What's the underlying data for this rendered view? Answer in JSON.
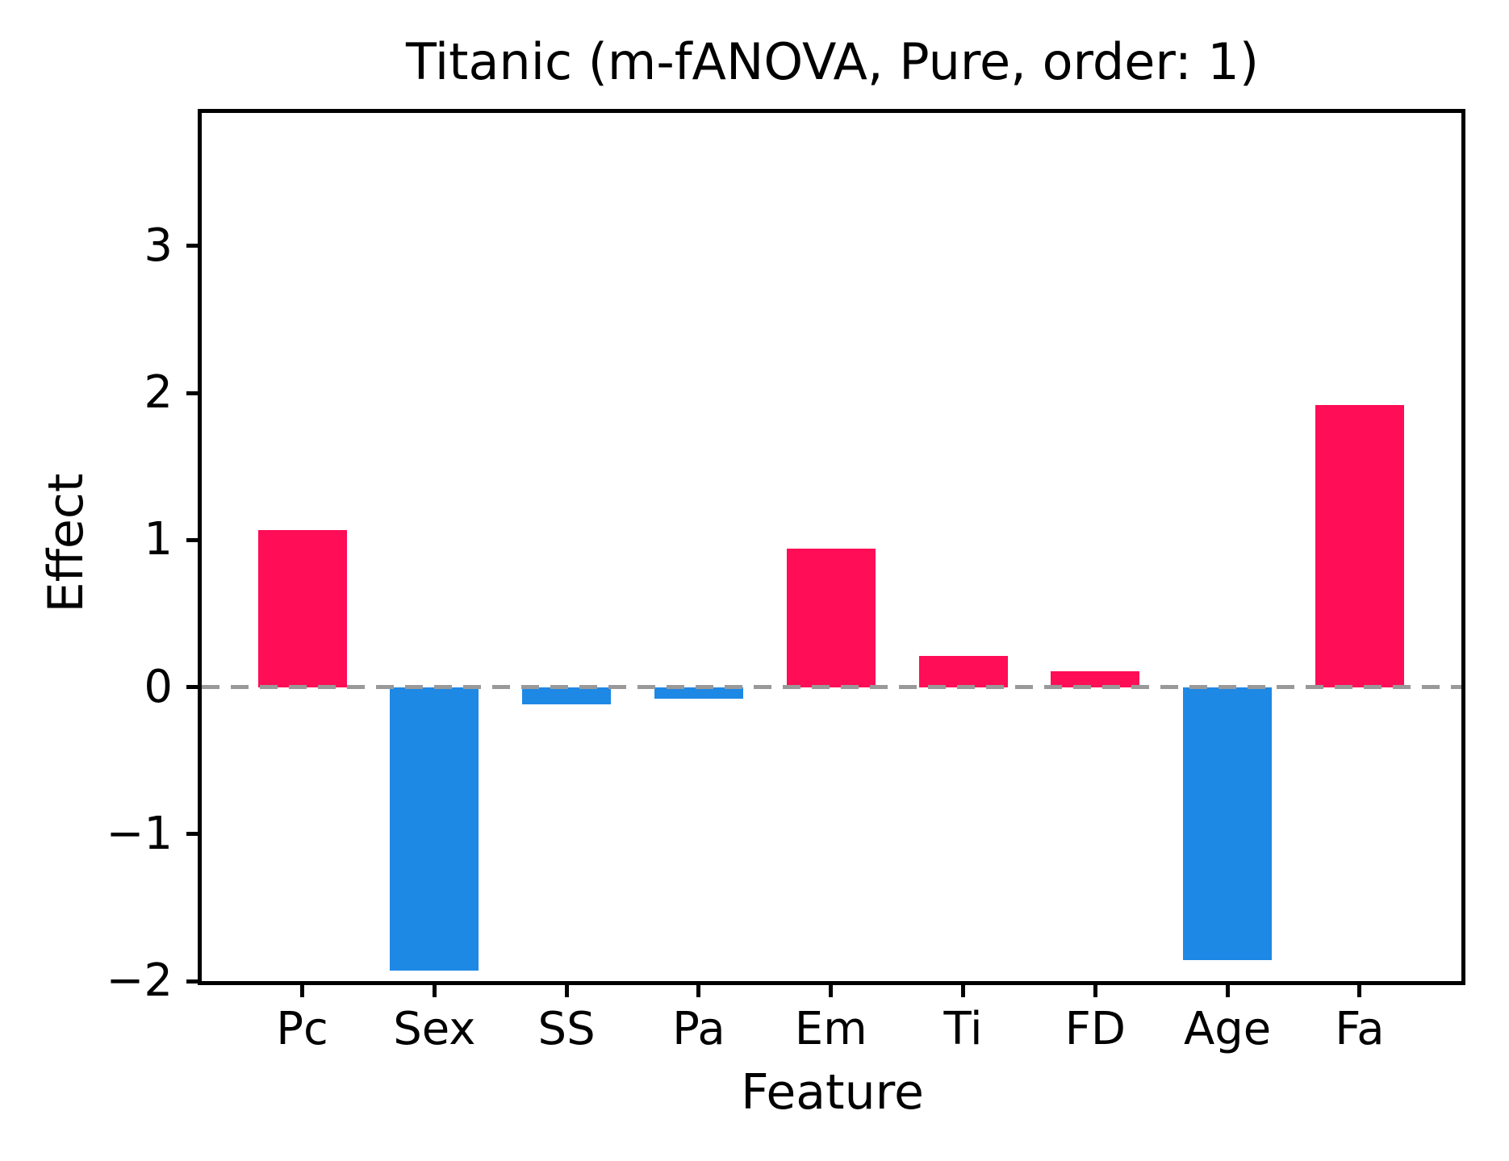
{
  "chart_data": {
    "type": "bar",
    "title": "Titanic (m-fANOVA, Pure, order: 1)",
    "xlabel": "Feature",
    "ylabel": "Effect",
    "categories": [
      "Pc",
      "Sex",
      "SS",
      "Pa",
      "Em",
      "Ti",
      "FD",
      "Age",
      "Fa"
    ],
    "values": [
      1.07,
      -1.93,
      -0.12,
      -0.08,
      0.94,
      0.21,
      0.11,
      -1.86,
      1.92
    ],
    "ylim": [
      -2,
      3.905
    ],
    "yticks": [
      3,
      2,
      1,
      0,
      -1,
      -2
    ],
    "ytick_labels": [
      "3",
      "2",
      "1",
      "0",
      "−1",
      "−2"
    ],
    "colors": {
      "positive_bar": "#FF0D57",
      "negative_bar": "#1E88E5",
      "zero_line": "#999999",
      "axis": "#000000"
    },
    "zero_line": {
      "y": 0,
      "style": "dashed",
      "color": "#999999"
    },
    "grid": false,
    "legend": null,
    "bar_orientation": "vertical"
  }
}
